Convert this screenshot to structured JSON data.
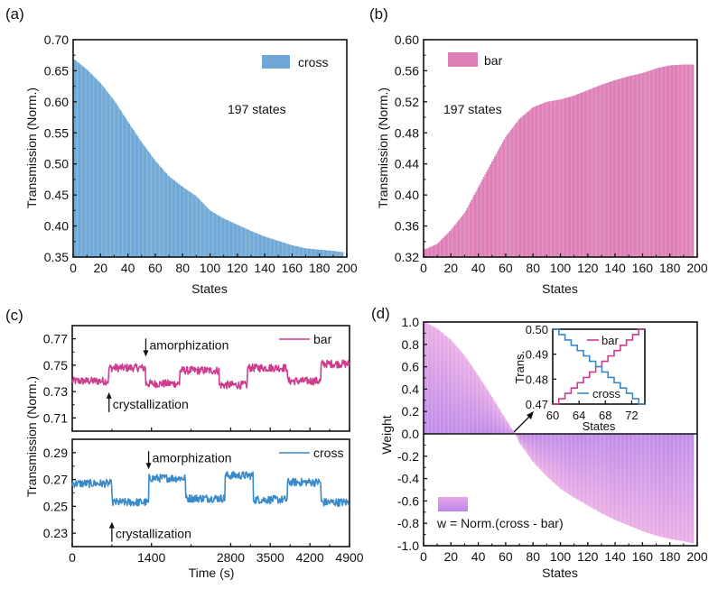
{
  "figure": {
    "colors": {
      "cross": "#6fa8d6",
      "bar": "#dd7fb6",
      "cross_line": "#3a8ac9",
      "bar_line": "#cc3c8f",
      "weight_top": "#e7a6e6",
      "weight_bottom": "#b883e6",
      "axis": "#111111"
    }
  },
  "chart_data": [
    {
      "id": "a",
      "panel_label": "(a)",
      "type": "bar",
      "title": "",
      "xlabel": "States",
      "ylabel": "Transmission (Norm.)",
      "xlim": [
        0,
        200
      ],
      "ylim": [
        0.35,
        0.7
      ],
      "xticks": [
        "0",
        "20",
        "40",
        "60",
        "80",
        "100",
        "120",
        "140",
        "160",
        "180",
        "200"
      ],
      "yticks": [
        "0.35",
        "0.40",
        "0.45",
        "0.50",
        "0.55",
        "0.60",
        "0.65",
        "0.70"
      ],
      "legend": {
        "label": "cross",
        "position": "top-right"
      },
      "annotation": "197 states",
      "n_states": 197,
      "curve_points": [
        [
          1,
          0.668
        ],
        [
          10,
          0.652
        ],
        [
          20,
          0.63
        ],
        [
          30,
          0.602
        ],
        [
          40,
          0.568
        ],
        [
          50,
          0.535
        ],
        [
          60,
          0.505
        ],
        [
          70,
          0.48
        ],
        [
          80,
          0.463
        ],
        [
          90,
          0.448
        ],
        [
          100,
          0.425
        ],
        [
          110,
          0.412
        ],
        [
          120,
          0.402
        ],
        [
          130,
          0.392
        ],
        [
          140,
          0.383
        ],
        [
          150,
          0.376
        ],
        [
          160,
          0.369
        ],
        [
          170,
          0.364
        ],
        [
          180,
          0.362
        ],
        [
          190,
          0.36
        ],
        [
          197,
          0.358
        ]
      ]
    },
    {
      "id": "b",
      "panel_label": "(b)",
      "type": "bar",
      "title": "",
      "xlabel": "States",
      "ylabel": "Transmission (Norm.)",
      "xlim": [
        0,
        200
      ],
      "ylim": [
        0.32,
        0.6
      ],
      "xticks": [
        "0",
        "20",
        "40",
        "60",
        "80",
        "100",
        "120",
        "140",
        "160",
        "180",
        "200"
      ],
      "yticks": [
        "0.32",
        "0.36",
        "0.40",
        "0.44",
        "0.48",
        "0.52",
        "0.56",
        "0.60"
      ],
      "legend": {
        "label": "bar",
        "position": "top-left"
      },
      "annotation": "197 states",
      "n_states": 197,
      "curve_points": [
        [
          1,
          0.33
        ],
        [
          10,
          0.337
        ],
        [
          20,
          0.355
        ],
        [
          30,
          0.377
        ],
        [
          40,
          0.41
        ],
        [
          50,
          0.443
        ],
        [
          60,
          0.475
        ],
        [
          70,
          0.498
        ],
        [
          80,
          0.513
        ],
        [
          90,
          0.52
        ],
        [
          100,
          0.523
        ],
        [
          110,
          0.528
        ],
        [
          120,
          0.535
        ],
        [
          130,
          0.542
        ],
        [
          140,
          0.548
        ],
        [
          150,
          0.553
        ],
        [
          160,
          0.557
        ],
        [
          170,
          0.563
        ],
        [
          180,
          0.567
        ],
        [
          190,
          0.568
        ],
        [
          197,
          0.568
        ]
      ]
    },
    {
      "id": "c",
      "panel_label": "(c)",
      "type": "line",
      "xlabel": "Time (s)",
      "ylabel": "Transmission (Norm.)",
      "xlim": [
        0,
        4900
      ],
      "xticks": [
        "0",
        "1400",
        "2800",
        "3500",
        "4200",
        "4900"
      ],
      "xtick_values": [
        0,
        1400,
        2800,
        3500,
        4200,
        4900
      ],
      "subplots": [
        {
          "series": "bar",
          "legend": "bar",
          "ylim": [
            0.7,
            0.78
          ],
          "yticks": [
            "0.71",
            "0.73",
            "0.75",
            "0.77"
          ],
          "ytick_values": [
            0.71,
            0.73,
            0.75,
            0.77
          ],
          "levels": [
            [
              0,
              0.738
            ],
            [
              650,
              0.748
            ],
            [
              1300,
              0.736
            ],
            [
              1900,
              0.746
            ],
            [
              2600,
              0.735
            ],
            [
              3100,
              0.748
            ],
            [
              3800,
              0.738
            ],
            [
              4400,
              0.751
            ],
            [
              4900,
              0.751
            ]
          ],
          "annotations": [
            {
              "text": "amorphization",
              "arrow": "down",
              "x": 1300,
              "y": 0.762
            },
            {
              "text": "crystallization",
              "arrow": "up",
              "x": 650,
              "y": 0.724
            }
          ]
        },
        {
          "series": "cross",
          "legend": "cross",
          "ylim": [
            0.22,
            0.3
          ],
          "yticks": [
            "0.23",
            "0.25",
            "0.27",
            "0.29"
          ],
          "ytick_values": [
            0.23,
            0.25,
            0.27,
            0.29
          ],
          "levels": [
            [
              0,
              0.267
            ],
            [
              700,
              0.253
            ],
            [
              1350,
              0.271
            ],
            [
              2000,
              0.256
            ],
            [
              2700,
              0.273
            ],
            [
              3200,
              0.255
            ],
            [
              3800,
              0.268
            ],
            [
              4400,
              0.253
            ],
            [
              4900,
              0.253
            ]
          ],
          "annotations": [
            {
              "text": "amorphization",
              "arrow": "down",
              "x": 1350,
              "y": 0.283
            },
            {
              "text": "crystallization",
              "arrow": "up",
              "x": 700,
              "y": 0.233
            }
          ]
        }
      ]
    },
    {
      "id": "d",
      "panel_label": "(d)",
      "type": "bar",
      "xlabel": "States",
      "ylabel": "Weight",
      "xlim": [
        0,
        200
      ],
      "ylim": [
        -1.0,
        1.0
      ],
      "xticks": [
        "0",
        "20",
        "40",
        "60",
        "80",
        "100",
        "120",
        "140",
        "160",
        "180",
        "200"
      ],
      "yticks": [
        "-1.0",
        "-0.8",
        "-0.6",
        "-0.4",
        "-0.2",
        "0.0",
        "0.2",
        "0.4",
        "0.6",
        "0.8",
        "1.0"
      ],
      "ytick_values": [
        -1.0,
        -0.8,
        -0.6,
        -0.4,
        -0.2,
        0.0,
        0.2,
        0.4,
        0.6,
        0.8,
        1.0
      ],
      "legend": {
        "label": "w = Norm.(cross - bar)",
        "position": "bottom-left"
      },
      "n_states": 197,
      "curve_points": [
        [
          1,
          1.0
        ],
        [
          10,
          0.94
        ],
        [
          20,
          0.84
        ],
        [
          30,
          0.7
        ],
        [
          40,
          0.52
        ],
        [
          50,
          0.33
        ],
        [
          60,
          0.13
        ],
        [
          67,
          0.0
        ],
        [
          70,
          -0.08
        ],
        [
          80,
          -0.25
        ],
        [
          90,
          -0.38
        ],
        [
          100,
          -0.49
        ],
        [
          110,
          -0.57
        ],
        [
          120,
          -0.64
        ],
        [
          130,
          -0.71
        ],
        [
          140,
          -0.77
        ],
        [
          150,
          -0.82
        ],
        [
          160,
          -0.87
        ],
        [
          170,
          -0.91
        ],
        [
          180,
          -0.94
        ],
        [
          190,
          -0.96
        ],
        [
          197,
          -0.98
        ]
      ],
      "inset": {
        "type": "line",
        "xlabel": "States",
        "ylabel": "Trans.",
        "xlim": [
          60,
          74
        ],
        "ylim": [
          0.47,
          0.5
        ],
        "xticks": [
          "60",
          "64",
          "68",
          "72"
        ],
        "xtick_values": [
          60,
          64,
          68,
          72
        ],
        "yticks": [
          "0.47",
          "0.48",
          "0.49",
          "0.50"
        ],
        "ytick_values": [
          0.47,
          0.48,
          0.49,
          0.5
        ],
        "series": [
          {
            "name": "bar",
            "start": 0.47,
            "end": 0.5
          },
          {
            "name": "cross",
            "start": 0.5,
            "end": 0.47
          }
        ],
        "steps": 15
      }
    }
  ]
}
